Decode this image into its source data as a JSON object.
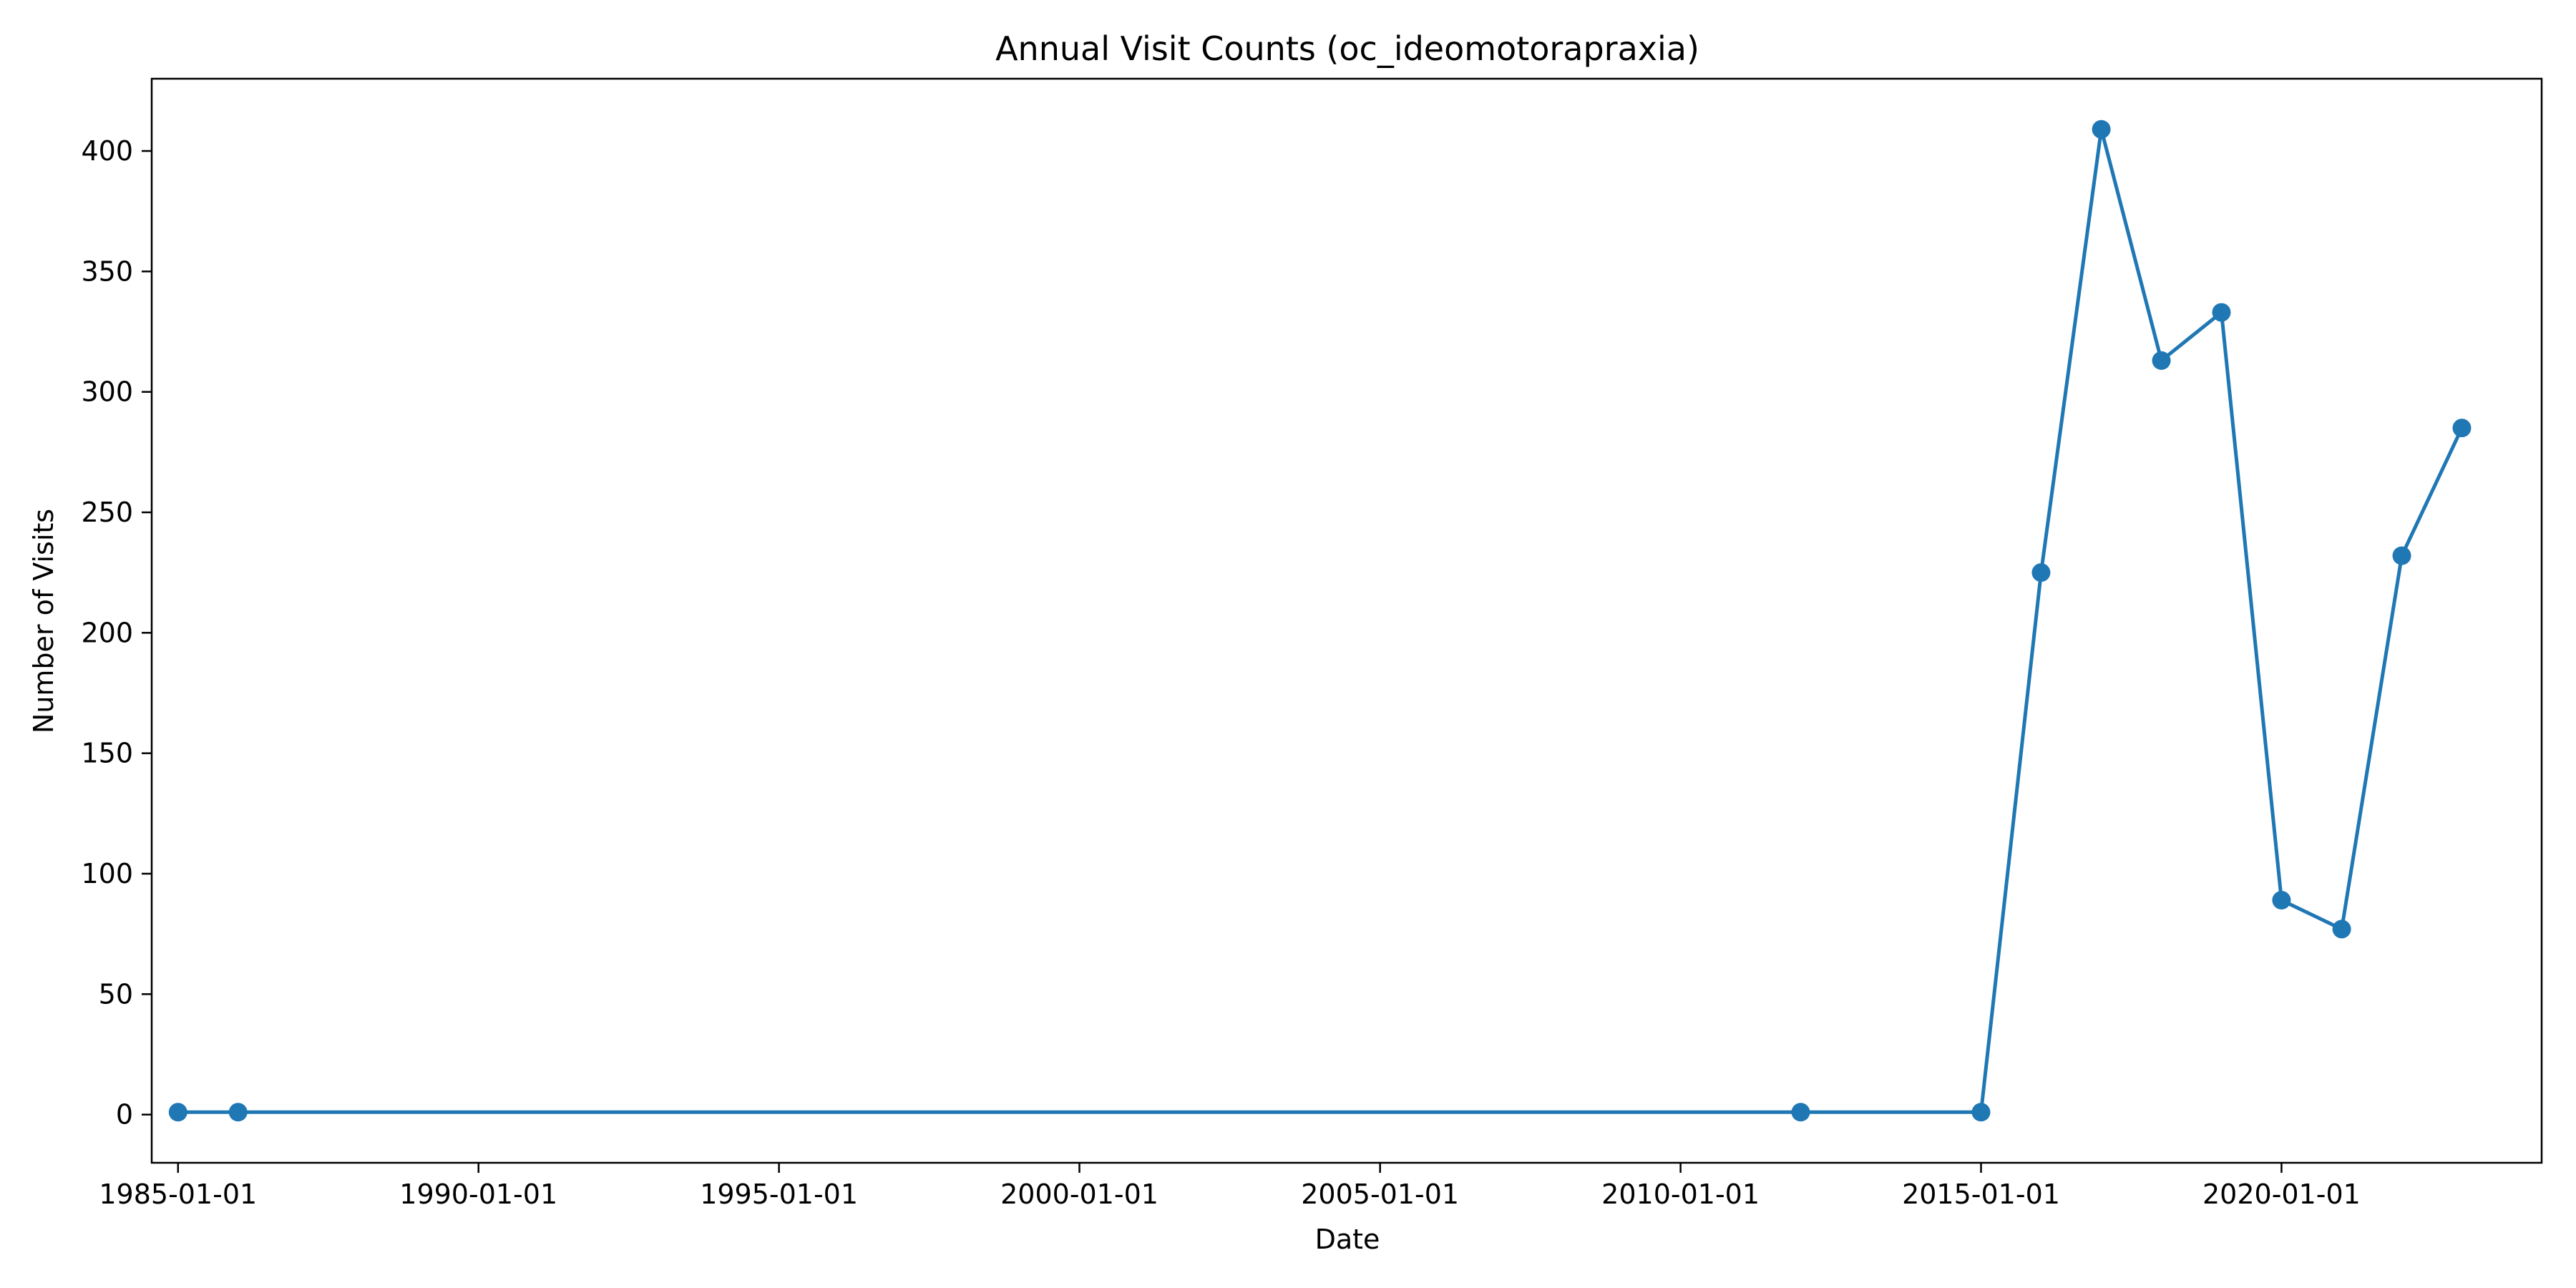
{
  "chart_data": {
    "type": "line",
    "title": "Annual Visit Counts (oc_ideomotorapraxia)",
    "xlabel": "Date",
    "ylabel": "Number of Visits",
    "x_ticks": [
      "1985-01-01",
      "1990-01-01",
      "1995-01-01",
      "2000-01-01",
      "2005-01-01",
      "2010-01-01",
      "2015-01-01",
      "2020-01-01"
    ],
    "y_ticks": [
      0,
      50,
      100,
      150,
      200,
      250,
      300,
      350,
      400
    ],
    "xlim": [
      "1984-07-25",
      "2024-04-30"
    ],
    "ylim": [
      -20,
      430
    ],
    "grid": false,
    "marker": "circle",
    "series": [
      {
        "color": "#1f77b4",
        "x": [
          "1985-01-01",
          "1986-01-01",
          "2012-01-01",
          "2015-01-01",
          "2016-01-01",
          "2017-01-01",
          "2018-01-01",
          "2019-01-01",
          "2020-01-01",
          "2021-01-01",
          "2022-01-01",
          "2023-01-01"
        ],
        "y": [
          1,
          1,
          1,
          1,
          225,
          409,
          313,
          333,
          89,
          77,
          232,
          285
        ]
      }
    ]
  }
}
